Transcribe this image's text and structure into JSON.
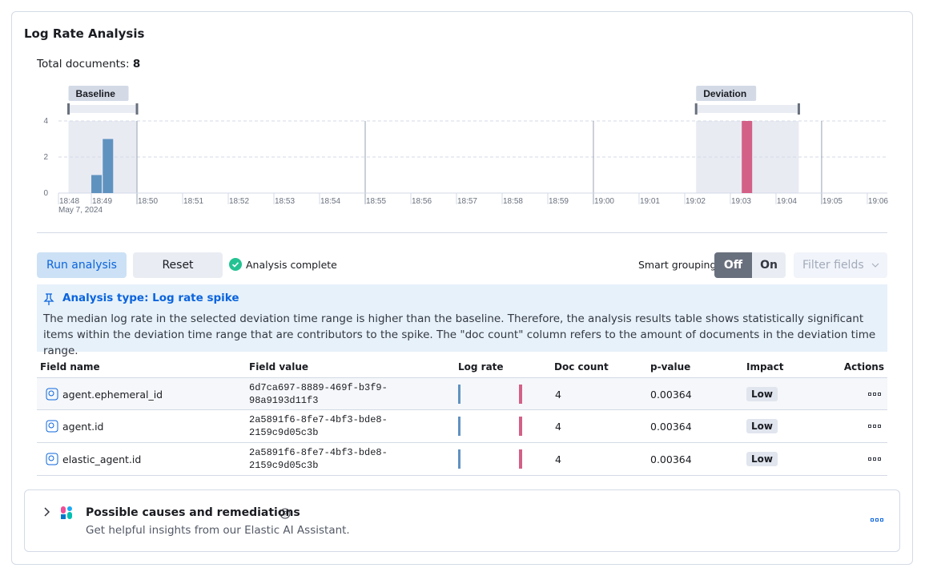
{
  "panel": {
    "title": "Log Rate Analysis",
    "total_label": "Total documents:",
    "total": 8
  },
  "chart_data": {
    "type": "bar",
    "x_sublabel": "May 7, 2024",
    "xlim": [
      1128.28,
      1146.44
    ],
    "xticks": [
      {
        "value": 1128,
        "label": "18:48"
      },
      {
        "value": 1129,
        "label": "18:49"
      },
      {
        "value": 1130,
        "label": "18:50"
      },
      {
        "value": 1131,
        "label": "18:51"
      },
      {
        "value": 1132,
        "label": "18:52"
      },
      {
        "value": 1133,
        "label": "18:53"
      },
      {
        "value": 1134,
        "label": "18:54"
      },
      {
        "value": 1135,
        "label": "18:55"
      },
      {
        "value": 1136,
        "label": "18:56"
      },
      {
        "value": 1137,
        "label": "18:57"
      },
      {
        "value": 1138,
        "label": "18:58"
      },
      {
        "value": 1139,
        "label": "18:59"
      },
      {
        "value": 1140,
        "label": "19:00"
      },
      {
        "value": 1141,
        "label": "19:01"
      },
      {
        "value": 1142,
        "label": "19:02"
      },
      {
        "value": 1143,
        "label": "19:03"
      },
      {
        "value": 1144,
        "label": "19:04"
      },
      {
        "value": 1145,
        "label": "19:05"
      },
      {
        "value": 1146,
        "label": "19:06"
      }
    ],
    "ylim": [
      0,
      4
    ],
    "yticks": [
      0,
      2,
      4
    ],
    "grid": true,
    "series": [
      {
        "name": "Baseline",
        "color": "#6092c0",
        "x": [
          1129,
          1129.25
        ],
        "values": [
          1,
          3
        ],
        "range": [
          1128.5,
          1130
        ]
      },
      {
        "name": "Deviation",
        "color": "#d36086",
        "x": [
          1143.25
        ],
        "values": [
          4
        ],
        "range": [
          1142.25,
          1144.5
        ]
      }
    ]
  },
  "controls": {
    "run": "Run analysis",
    "reset": "Reset",
    "status": "Analysis complete",
    "grouping_label": "Smart grouping",
    "grouping_options": [
      "Off",
      "On"
    ],
    "filter": "Filter fields"
  },
  "callout": {
    "title": "Analysis type: Log rate spike",
    "text": "The median log rate in the selected deviation time range is higher than the baseline. Therefore, the analysis results table shows statistically significant items within the deviation time range that are contributors to the spike. The \"doc count\" column refers to the amount of documents in the deviation time range."
  },
  "table": {
    "columns": [
      "Field name",
      "Field value",
      "Log rate",
      "Doc count",
      "p-value",
      "Impact",
      "Actions"
    ],
    "rows": [
      [
        "agent.ephemeral_id",
        "6d7ca697-8889-469f-b3f9-98a9193d11f3",
        4,
        0.00364,
        "Low"
      ],
      [
        "agent.id",
        "2a5891f6-8fe7-4bf3-bde8-2159c9d05c3b",
        4,
        0.00364,
        "Low"
      ],
      [
        "elastic_agent.id",
        "2a5891f6-8fe7-4bf3-bde8-2159c9d05c3b",
        4,
        0.00364,
        "Low"
      ]
    ]
  },
  "footer": {
    "title": "Possible causes and remediations",
    "text": "Get helpful insights from our Elastic AI Assistant."
  }
}
